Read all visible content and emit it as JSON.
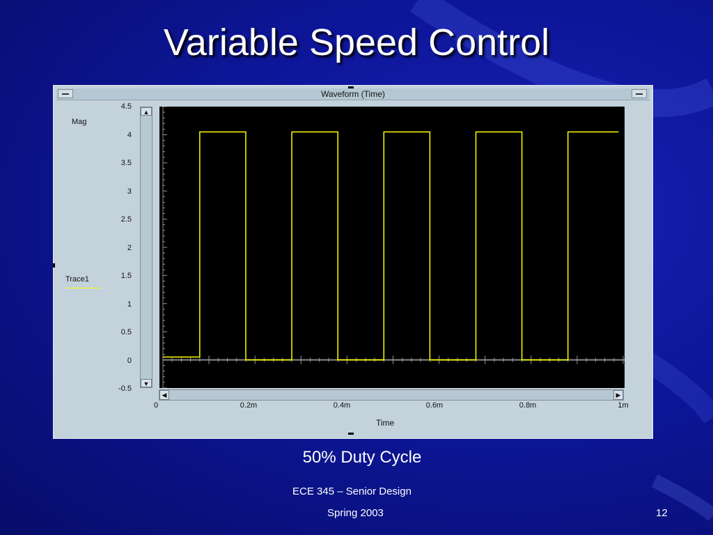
{
  "slide": {
    "title": "Variable Speed Control",
    "caption": "50% Duty Cycle",
    "footer_course": "ECE 345 – Senior Design",
    "footer_term": "Spring 2003",
    "page_number": "12"
  },
  "window": {
    "title": "Waveform (Time)",
    "y_label": "Mag",
    "x_label": "Time",
    "legend_label": "Trace1",
    "trace_color": "#ffff00"
  },
  "chart_data": {
    "type": "line",
    "title": "Waveform (Time)",
    "xlabel": "Time",
    "ylabel": "Mag",
    "ylim": [
      -0.5,
      4.5
    ],
    "xlim": [
      0,
      0.001
    ],
    "yticks": [
      "4.5",
      "4",
      "3.5",
      "3",
      "2.5",
      "2",
      "1.5",
      "1",
      "0.5",
      "0",
      "-0.5"
    ],
    "xticks": [
      "0",
      "0.2m",
      "0.4m",
      "0.6m",
      "0.8m",
      "1m"
    ],
    "legend": [
      "Trace1"
    ],
    "series": [
      {
        "name": "Trace1",
        "x": [
          0,
          8e-05,
          8e-05,
          0.00018,
          0.00018,
          0.00028,
          0.00028,
          0.00038,
          0.00038,
          0.00048,
          0.00048,
          0.00058,
          0.00058,
          0.00068,
          0.00068,
          0.00078,
          0.00078,
          0.00088,
          0.00088,
          0.00099
        ],
        "y": [
          0.05,
          0.05,
          4.05,
          4.05,
          0.0,
          0.0,
          4.05,
          4.05,
          0.0,
          0.0,
          4.05,
          4.05,
          0.0,
          0.0,
          4.05,
          4.05,
          0.0,
          0.0,
          4.05,
          4.05
        ]
      }
    ]
  }
}
